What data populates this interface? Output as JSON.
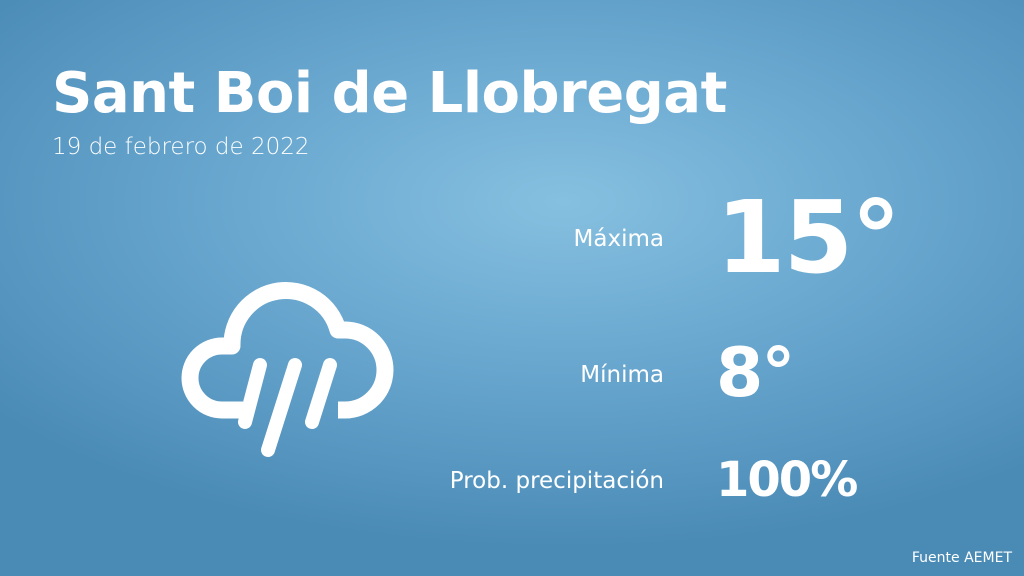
{
  "header": {
    "city": "Sant Boi de Llobregat",
    "date": "19 de febrero de 2022"
  },
  "weather": {
    "icon": "cloud-rain-icon",
    "max_label": "Máxima",
    "max_value": "15°",
    "min_label": "Mínima",
    "min_value": "8°",
    "precip_label": "Prob. precipitación",
    "precip_value": "100%"
  },
  "footer": {
    "source": "Fuente AEMET"
  },
  "colors": {
    "background_top": "#86c0e0",
    "background_bottom": "#4a8bb6",
    "text": "#ffffff"
  }
}
